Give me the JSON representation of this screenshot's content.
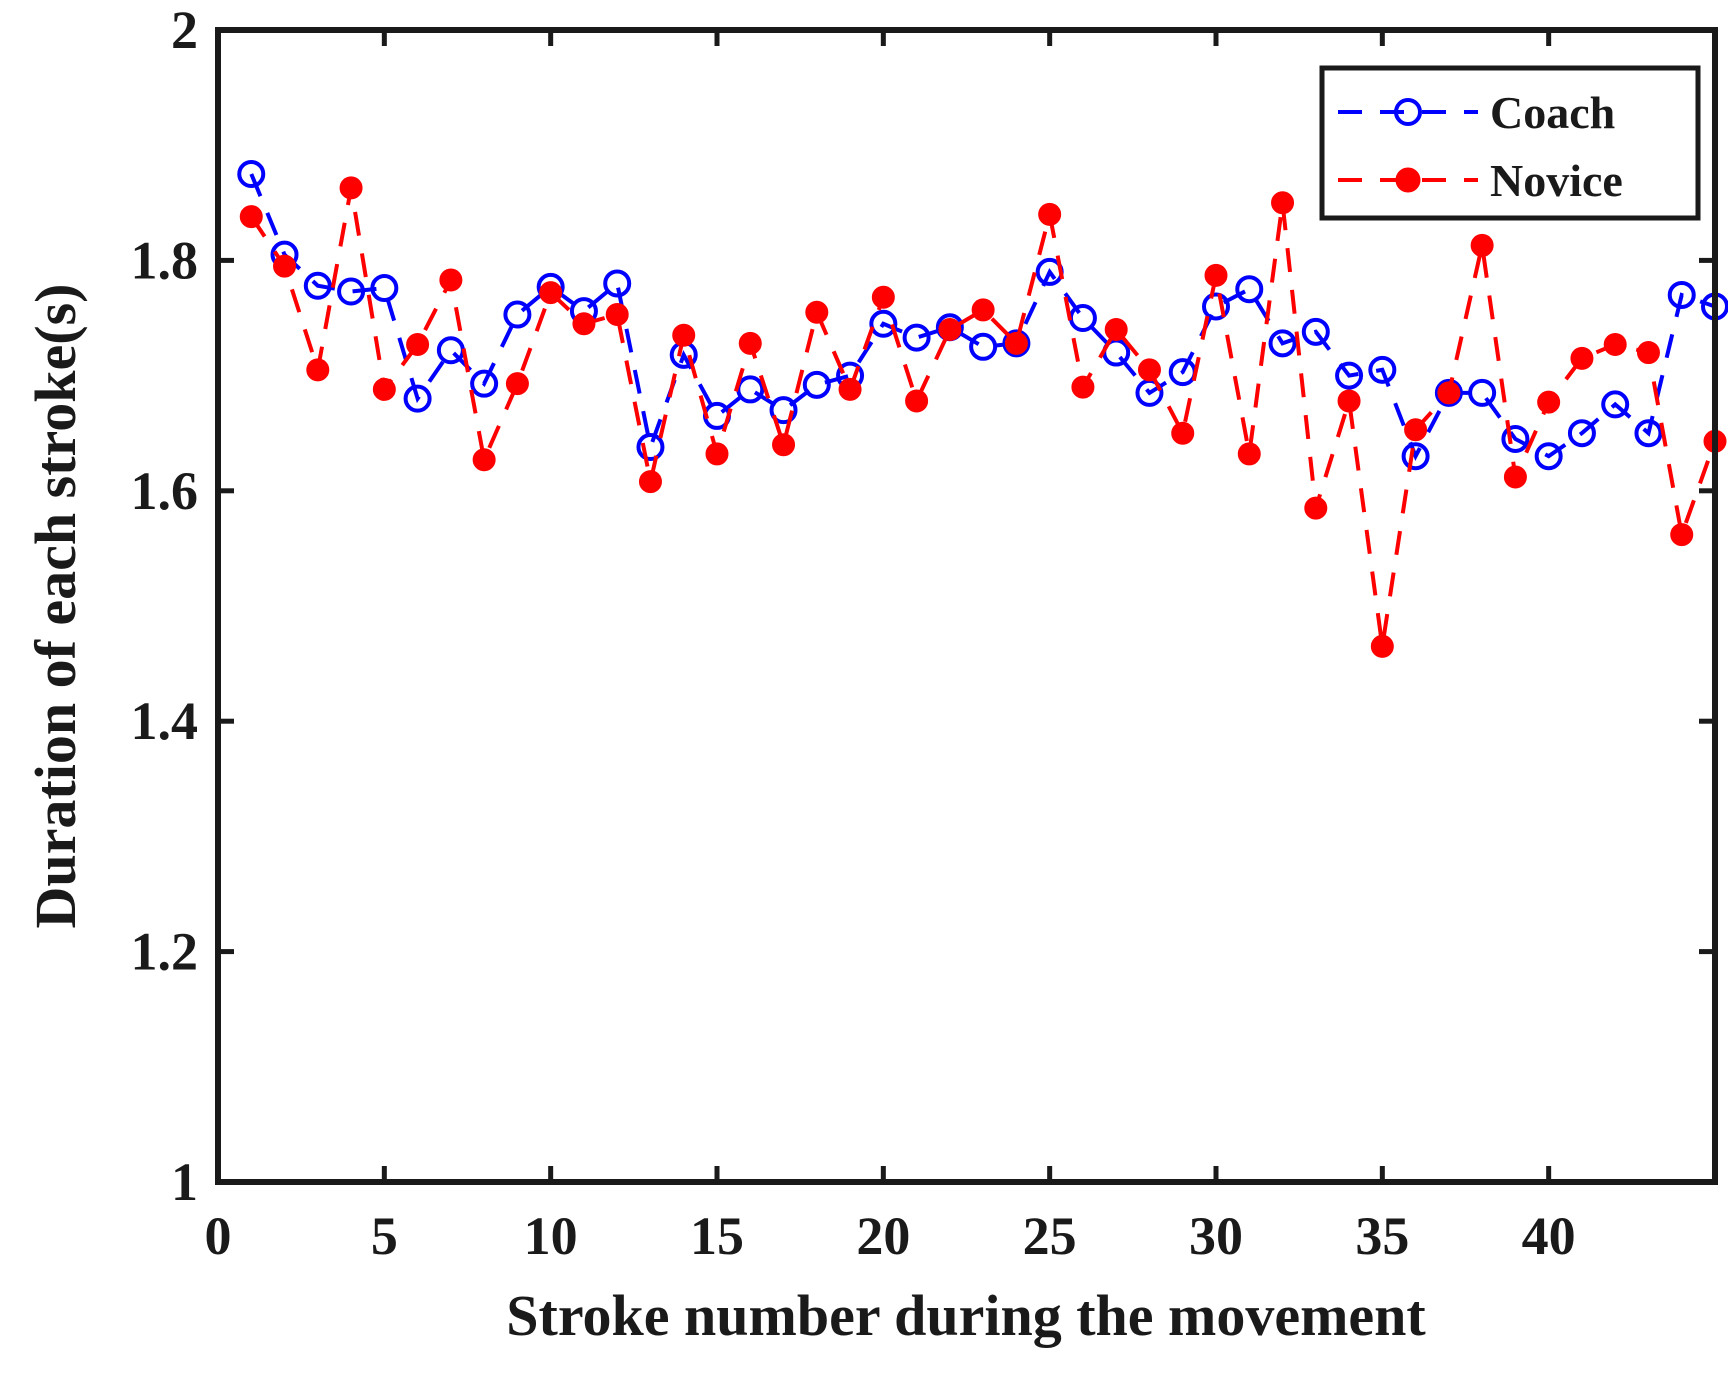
{
  "chart_data": {
    "type": "line",
    "title": "",
    "xlabel": "Stroke number during the movement",
    "ylabel": "Duration of each stroke(s)",
    "xlim": [
      0,
      45
    ],
    "ylim": [
      1,
      2
    ],
    "xticks": [
      0,
      5,
      10,
      15,
      20,
      25,
      30,
      35,
      40
    ],
    "yticks": [
      1,
      1.2,
      1.4,
      1.6,
      1.8,
      2
    ],
    "xtick_labels": [
      "0",
      "5",
      "10",
      "15",
      "20",
      "25",
      "30",
      "35",
      "40"
    ],
    "ytick_labels": [
      "1",
      "1.2",
      "1.4",
      "1.6",
      "1.8",
      "2"
    ],
    "legend_position": "top-right",
    "x": [
      1,
      2,
      3,
      4,
      5,
      6,
      7,
      8,
      9,
      10,
      11,
      12,
      13,
      14,
      15,
      16,
      17,
      18,
      19,
      20,
      21,
      22,
      23,
      24,
      25,
      26,
      27,
      28,
      29,
      30,
      31,
      32,
      33,
      34,
      35,
      36,
      37,
      38,
      39,
      40,
      41,
      42,
      43,
      44,
      45
    ],
    "series": [
      {
        "name": "Coach",
        "color": "#0000ff",
        "marker": "circle",
        "line_style": "dashed",
        "values": [
          1.875,
          1.805,
          1.778,
          1.773,
          1.776,
          1.68,
          1.722,
          1.693,
          1.753,
          1.777,
          1.756,
          1.78,
          1.638,
          1.718,
          1.665,
          1.688,
          1.67,
          1.692,
          1.7,
          1.745,
          1.733,
          1.742,
          1.725,
          1.728,
          1.79,
          1.75,
          1.72,
          1.685,
          1.703,
          1.76,
          1.775,
          1.728,
          1.738,
          1.7,
          1.705,
          1.63,
          1.685,
          1.685,
          1.645,
          1.63,
          1.65,
          1.675,
          1.65,
          1.77,
          1.76
        ]
      },
      {
        "name": "Novice",
        "color": "#ff0000",
        "marker": "star",
        "line_style": "dashed",
        "values": [
          1.838,
          1.795,
          1.705,
          1.863,
          1.688,
          1.727,
          1.783,
          1.627,
          1.693,
          1.772,
          1.745,
          1.753,
          1.608,
          1.735,
          1.632,
          1.728,
          1.64,
          1.755,
          1.688,
          1.768,
          1.678,
          1.74,
          1.757,
          1.728,
          1.84,
          1.69,
          1.74,
          1.705,
          1.65,
          1.787,
          1.632,
          1.85,
          1.585,
          1.678,
          1.465,
          1.653,
          1.685,
          1.813,
          1.612,
          1.677,
          1.715,
          1.727,
          1.72,
          1.562,
          1.643
        ]
      }
    ]
  }
}
